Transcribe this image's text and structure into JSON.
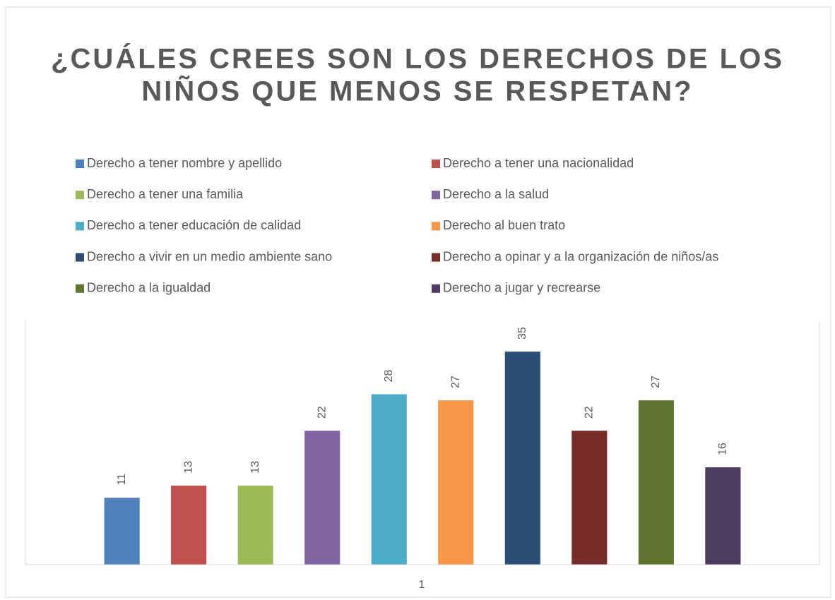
{
  "chart_data": {
    "type": "bar",
    "title": [
      "¿CUÁLES  CREES  SON LOS DERECHOS DE LOS",
      "NIÑOS QUE MENOS SE RESPETAN?"
    ],
    "categories": [
      "1"
    ],
    "series": [
      {
        "name": "Derecho a tener nombre y apellido",
        "color": "#4f81bd",
        "values": [
          11
        ]
      },
      {
        "name": "Derecho a tener una nacionalidad",
        "color": "#c0504d",
        "values": [
          13
        ]
      },
      {
        "name": "Derecho a tener una familia",
        "color": "#9bbb59",
        "values": [
          13
        ]
      },
      {
        "name": "Derecho a la salud",
        "color": "#8064a2",
        "values": [
          22
        ]
      },
      {
        "name": "Derecho a tener educación de calidad",
        "color": "#4bacc6",
        "values": [
          28
        ]
      },
      {
        "name": "Derecho al buen trato",
        "color": "#f79646",
        "values": [
          27
        ]
      },
      {
        "name": "Derecho a vivir en un medio ambiente sano",
        "color": "#2c4d75",
        "values": [
          35
        ]
      },
      {
        "name": "Derecho a opinar y a la organización de niños/as",
        "color": "#772c2a",
        "values": [
          22
        ]
      },
      {
        "name": "Derecho a la igualdad",
        "color": "#5f7530",
        "values": [
          27
        ]
      },
      {
        "name": "Derecho a jugar y recrearse",
        "color": "#4d3b62",
        "values": [
          16
        ]
      }
    ],
    "ylim": [
      0,
      40
    ],
    "legend": "top"
  }
}
